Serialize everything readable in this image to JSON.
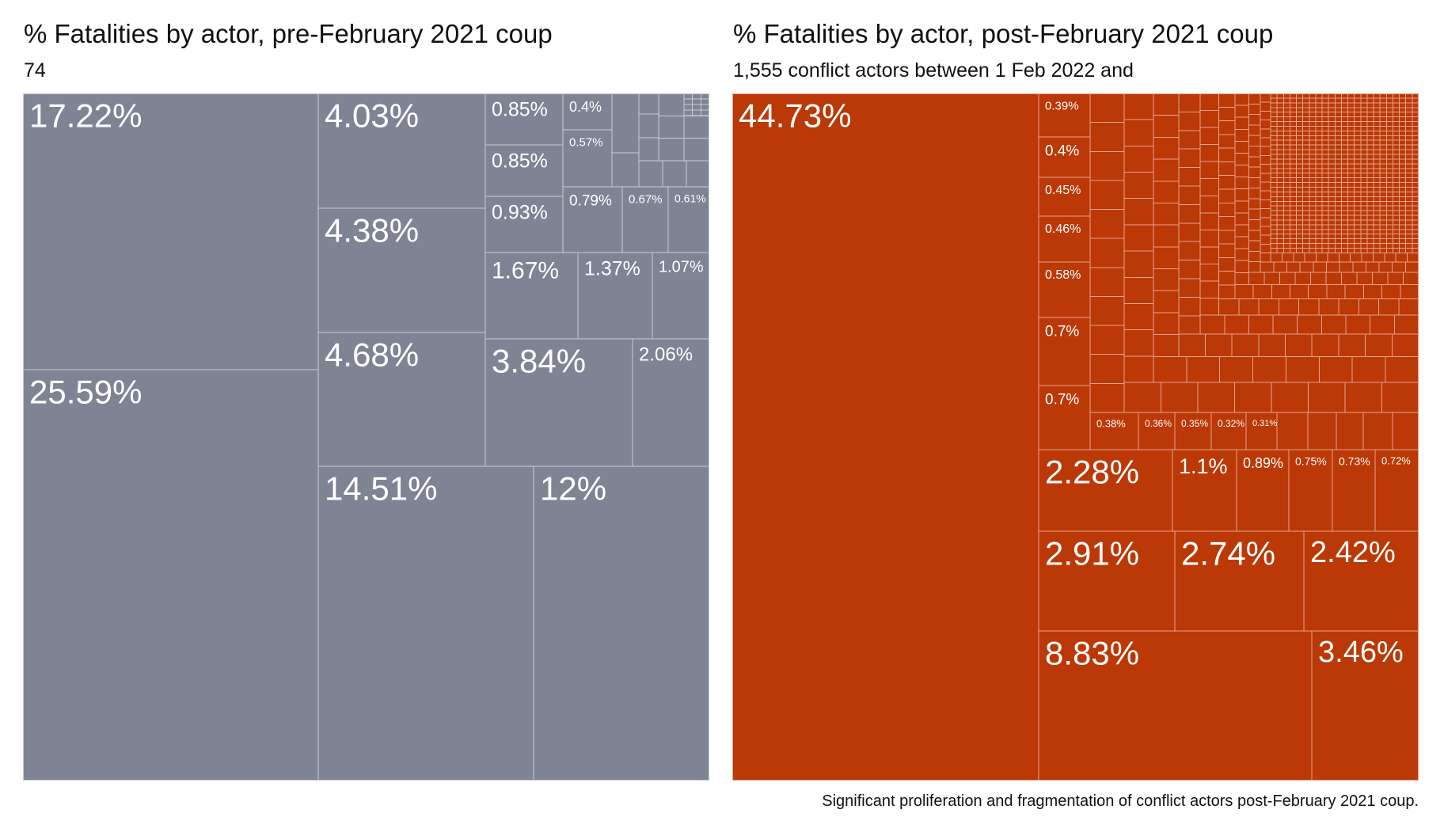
{
  "colors": {
    "pre": "#7f8494",
    "post": "#bb3807",
    "border": "#c9ccd4",
    "post_border": "#e5a58a"
  },
  "chart_data": [
    {
      "type": "treemap",
      "title": "% Fatalities by actor, pre-February 2021 coup",
      "subtitle": "74",
      "labeled_values": [
        25.59,
        17.22,
        14.51,
        12,
        4.68,
        4.38,
        4.03,
        3.84,
        2.06,
        1.67,
        1.37,
        1.07,
        0.93,
        0.85,
        0.85,
        0.79,
        0.67,
        0.61,
        0.57,
        0.4
      ],
      "labels": [
        "25.59%",
        "17.22%",
        "14.51%",
        "12%",
        "4.68%",
        "4.38%",
        "4.03%",
        "3.84%",
        "2.06%",
        "1.67%",
        "1.37%",
        "1.07%",
        "0.93%",
        "0.85%",
        "0.85%",
        "0.79%",
        "0.67%",
        "0.61%",
        "0.57%",
        "0.4%"
      ]
    },
    {
      "type": "treemap",
      "title": "% Fatalities by actor, post-February 2021 coup",
      "subtitle": "1,555 conflict actors between 1 Feb 2022 and",
      "labeled_values": [
        44.73,
        8.83,
        3.46,
        2.91,
        2.74,
        2.42,
        2.28,
        1.1,
        0.89,
        0.75,
        0.73,
        0.72,
        0.7,
        0.7,
        0.58,
        0.46,
        0.45,
        0.4,
        0.39,
        0.38,
        0.36,
        0.35,
        0.32,
        0.31
      ],
      "labels": [
        "44.73%",
        "8.83%",
        "3.46%",
        "2.91%",
        "2.74%",
        "2.42%",
        "2.28%",
        "1.1%",
        "0.89%",
        "0.75%",
        "0.73%",
        "0.72%",
        "0.7%",
        "0.7%",
        "0.58%",
        "0.46%",
        "0.45%",
        "0.4%",
        "0.39%",
        "0.38%",
        "0.36%",
        "0.35%",
        "0.32%",
        "0.31%"
      ]
    }
  ],
  "caption": "Significant proliferation and fragmentation of conflict actors post-February 2021 coup."
}
